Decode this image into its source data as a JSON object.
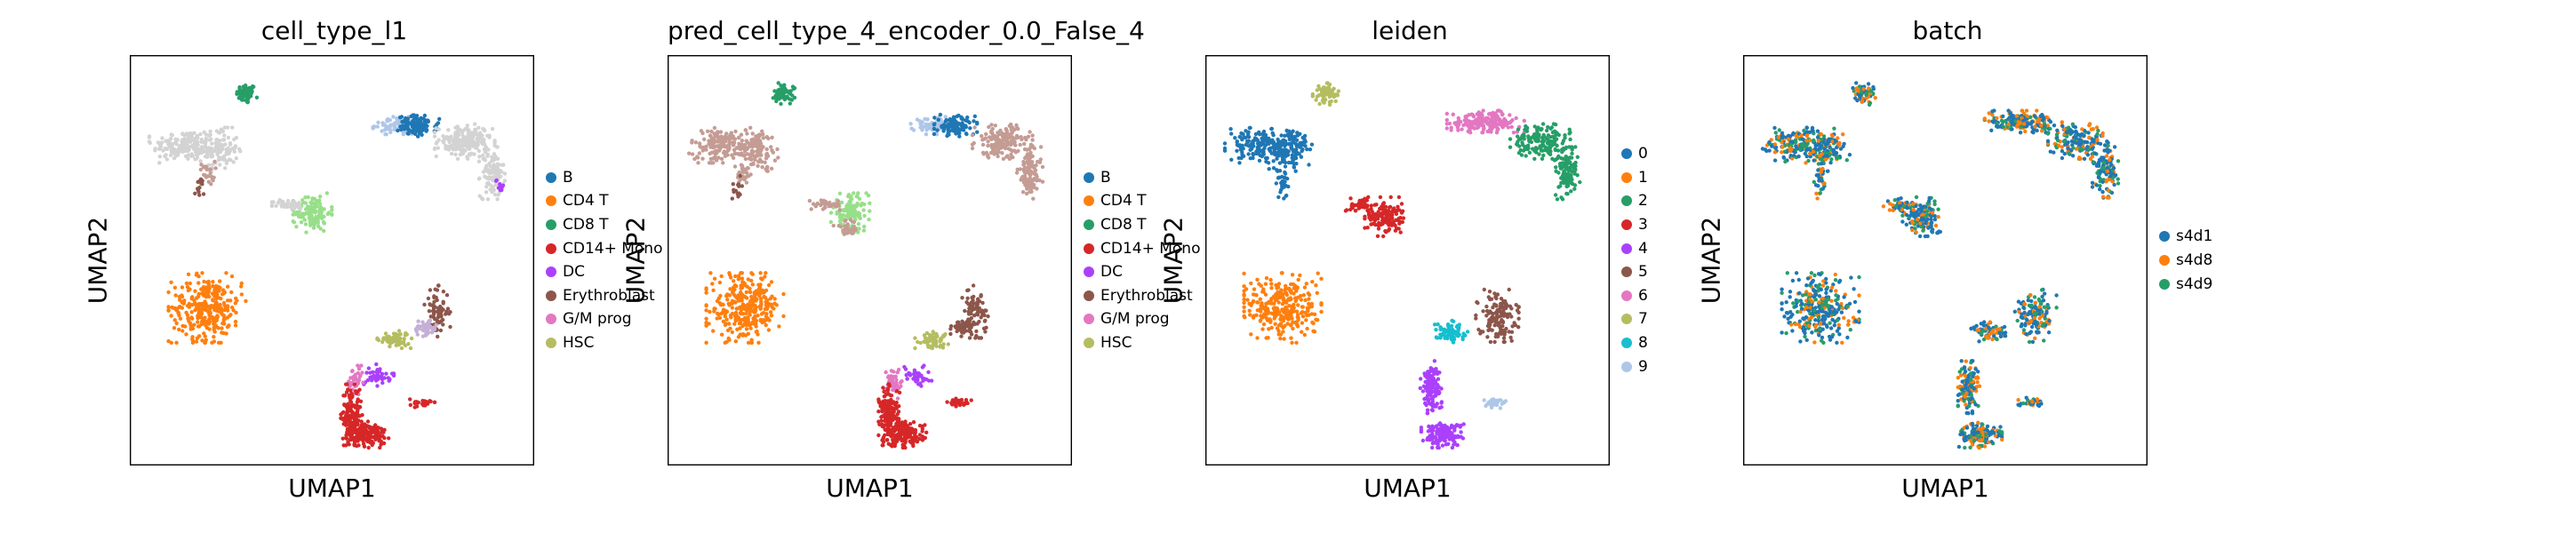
{
  "chart_data": [
    {
      "type": "scatter",
      "title": "cell_type_l1",
      "xlabel": "UMAP1",
      "ylabel": "UMAP2",
      "x_ticks": [],
      "y_ticks": [],
      "legend_position": "right",
      "legend": [
        {
          "label": "B",
          "color": "#1f77b4"
        },
        {
          "label": "CD4 T",
          "color": "#ff7f0e"
        },
        {
          "label": "CD8 T",
          "color": "#279e68"
        },
        {
          "label": "CD14+ Mono",
          "color": "#d62728"
        },
        {
          "label": "DC",
          "color": "#aa40fc"
        },
        {
          "label": "Erythroblast",
          "color": "#8c564b"
        },
        {
          "label": "G/M prog",
          "color": "#e377c2"
        },
        {
          "label": "HSC",
          "color": "#b5bd61"
        }
      ],
      "clusters": [
        {
          "x": 0.28,
          "y": 0.92,
          "rx": 0.025,
          "ry": 0.025,
          "color": "#279e68",
          "n": 60
        },
        {
          "x": 0.12,
          "y": 0.79,
          "rx": 0.08,
          "ry": 0.04,
          "color": "#d3d3d3",
          "n": 160
        },
        {
          "x": 0.21,
          "y": 0.78,
          "rx": 0.05,
          "ry": 0.05,
          "color": "#d3d3d3",
          "n": 120
        },
        {
          "x": 0.18,
          "y": 0.72,
          "rx": 0.02,
          "ry": 0.03,
          "color": "#c49c94",
          "n": 25
        },
        {
          "x": 0.16,
          "y": 0.68,
          "rx": 0.012,
          "ry": 0.03,
          "color": "#8c564b",
          "n": 15
        },
        {
          "x": 0.66,
          "y": 0.84,
          "rx": 0.05,
          "ry": 0.02,
          "color": "#aec7e8",
          "n": 70
        },
        {
          "x": 0.72,
          "y": 0.84,
          "rx": 0.05,
          "ry": 0.025,
          "color": "#1f77b4",
          "n": 110
        },
        {
          "x": 0.84,
          "y": 0.8,
          "rx": 0.07,
          "ry": 0.04,
          "color": "#d3d3d3",
          "n": 180
        },
        {
          "x": 0.91,
          "y": 0.72,
          "rx": 0.03,
          "ry": 0.06,
          "color": "#d3d3d3",
          "n": 110
        },
        {
          "x": 0.93,
          "y": 0.69,
          "rx": 0.01,
          "ry": 0.02,
          "color": "#aa40fc",
          "n": 10
        },
        {
          "x": 0.45,
          "y": 0.62,
          "rx": 0.045,
          "ry": 0.045,
          "color": "#98df8a",
          "n": 120
        },
        {
          "x": 0.39,
          "y": 0.64,
          "rx": 0.04,
          "ry": 0.012,
          "color": "#d3d3d3",
          "n": 40
        },
        {
          "x": 0.18,
          "y": 0.38,
          "rx": 0.09,
          "ry": 0.08,
          "color": "#ff7f0e",
          "n": 300
        },
        {
          "x": 0.77,
          "y": 0.37,
          "rx": 0.03,
          "ry": 0.06,
          "color": "#8c564b",
          "n": 70
        },
        {
          "x": 0.74,
          "y": 0.33,
          "rx": 0.03,
          "ry": 0.02,
          "color": "#c5b0d5",
          "n": 50
        },
        {
          "x": 0.66,
          "y": 0.3,
          "rx": 0.04,
          "ry": 0.02,
          "color": "#b5bd61",
          "n": 60
        },
        {
          "x": 0.62,
          "y": 0.21,
          "rx": 0.035,
          "ry": 0.025,
          "color": "#aa40fc",
          "n": 40
        },
        {
          "x": 0.56,
          "y": 0.19,
          "rx": 0.02,
          "ry": 0.04,
          "color": "#e377c2",
          "n": 40
        },
        {
          "x": 0.55,
          "y": 0.11,
          "rx": 0.025,
          "ry": 0.07,
          "color": "#d62728",
          "n": 160
        },
        {
          "x": 0.59,
          "y": 0.06,
          "rx": 0.05,
          "ry": 0.03,
          "color": "#d62728",
          "n": 150
        },
        {
          "x": 0.73,
          "y": 0.14,
          "rx": 0.03,
          "ry": 0.01,
          "color": "#d62728",
          "n": 30
        }
      ]
    },
    {
      "type": "scatter",
      "title": "pred_cell_type_4_encoder_0.0_False_4",
      "xlabel": "UMAP1",
      "ylabel": "UMAP2",
      "x_ticks": [],
      "y_ticks": [],
      "legend_position": "right",
      "legend": [
        {
          "label": "B",
          "color": "#1f77b4"
        },
        {
          "label": "CD4 T",
          "color": "#ff7f0e"
        },
        {
          "label": "CD8 T",
          "color": "#279e68"
        },
        {
          "label": "CD14+ Mono",
          "color": "#d62728"
        },
        {
          "label": "DC",
          "color": "#aa40fc"
        },
        {
          "label": "Erythroblast",
          "color": "#8c564b"
        },
        {
          "label": "G/M prog",
          "color": "#e377c2"
        },
        {
          "label": "HSC",
          "color": "#b5bd61"
        }
      ],
      "clusters": [
        {
          "x": 0.28,
          "y": 0.92,
          "rx": 0.025,
          "ry": 0.025,
          "color": "#279e68",
          "n": 60
        },
        {
          "x": 0.12,
          "y": 0.79,
          "rx": 0.08,
          "ry": 0.04,
          "color": "#c49c94",
          "n": 160
        },
        {
          "x": 0.21,
          "y": 0.78,
          "rx": 0.05,
          "ry": 0.05,
          "color": "#c49c94",
          "n": 120
        },
        {
          "x": 0.18,
          "y": 0.72,
          "rx": 0.02,
          "ry": 0.03,
          "color": "#c49c94",
          "n": 25
        },
        {
          "x": 0.16,
          "y": 0.68,
          "rx": 0.012,
          "ry": 0.03,
          "color": "#8c564b",
          "n": 15
        },
        {
          "x": 0.66,
          "y": 0.84,
          "rx": 0.05,
          "ry": 0.02,
          "color": "#aec7e8",
          "n": 70
        },
        {
          "x": 0.72,
          "y": 0.84,
          "rx": 0.05,
          "ry": 0.025,
          "color": "#1f77b4",
          "n": 110
        },
        {
          "x": 0.84,
          "y": 0.8,
          "rx": 0.07,
          "ry": 0.04,
          "color": "#c49c94",
          "n": 180
        },
        {
          "x": 0.91,
          "y": 0.72,
          "rx": 0.03,
          "ry": 0.06,
          "color": "#c49c94",
          "n": 110
        },
        {
          "x": 0.45,
          "y": 0.62,
          "rx": 0.045,
          "ry": 0.045,
          "color": "#98df8a",
          "n": 120
        },
        {
          "x": 0.39,
          "y": 0.64,
          "rx": 0.04,
          "ry": 0.012,
          "color": "#c49c94",
          "n": 40
        },
        {
          "x": 0.44,
          "y": 0.58,
          "rx": 0.03,
          "ry": 0.02,
          "color": "#c49c94",
          "n": 30
        },
        {
          "x": 0.18,
          "y": 0.38,
          "rx": 0.09,
          "ry": 0.08,
          "color": "#ff7f0e",
          "n": 300
        },
        {
          "x": 0.77,
          "y": 0.37,
          "rx": 0.03,
          "ry": 0.06,
          "color": "#8c564b",
          "n": 70
        },
        {
          "x": 0.74,
          "y": 0.33,
          "rx": 0.03,
          "ry": 0.02,
          "color": "#8c564b",
          "n": 50
        },
        {
          "x": 0.66,
          "y": 0.3,
          "rx": 0.04,
          "ry": 0.02,
          "color": "#b5bd61",
          "n": 60
        },
        {
          "x": 0.62,
          "y": 0.21,
          "rx": 0.035,
          "ry": 0.025,
          "color": "#aa40fc",
          "n": 40
        },
        {
          "x": 0.56,
          "y": 0.19,
          "rx": 0.02,
          "ry": 0.04,
          "color": "#e377c2",
          "n": 40
        },
        {
          "x": 0.55,
          "y": 0.11,
          "rx": 0.025,
          "ry": 0.07,
          "color": "#d62728",
          "n": 160
        },
        {
          "x": 0.59,
          "y": 0.06,
          "rx": 0.05,
          "ry": 0.03,
          "color": "#d62728",
          "n": 150
        },
        {
          "x": 0.73,
          "y": 0.14,
          "rx": 0.03,
          "ry": 0.01,
          "color": "#d62728",
          "n": 30
        }
      ]
    },
    {
      "type": "scatter",
      "title": "leiden",
      "xlabel": "UMAP1",
      "ylabel": "UMAP2",
      "x_ticks": [],
      "y_ticks": [],
      "legend_position": "right",
      "legend": [
        {
          "label": "0",
          "color": "#1f77b4"
        },
        {
          "label": "1",
          "color": "#ff7f0e"
        },
        {
          "label": "2",
          "color": "#279e68"
        },
        {
          "label": "3",
          "color": "#d62728"
        },
        {
          "label": "4",
          "color": "#aa40fc"
        },
        {
          "label": "5",
          "color": "#8c564b"
        },
        {
          "label": "6",
          "color": "#e377c2"
        },
        {
          "label": "7",
          "color": "#b5bd61"
        },
        {
          "label": "8",
          "color": "#17becf"
        },
        {
          "label": "9",
          "color": "#aec7e8"
        }
      ],
      "clusters": [
        {
          "x": 0.29,
          "y": 0.92,
          "rx": 0.03,
          "ry": 0.025,
          "color": "#b5bd61",
          "n": 60
        },
        {
          "x": 0.12,
          "y": 0.79,
          "rx": 0.08,
          "ry": 0.04,
          "color": "#1f77b4",
          "n": 160
        },
        {
          "x": 0.2,
          "y": 0.78,
          "rx": 0.05,
          "ry": 0.05,
          "color": "#1f77b4",
          "n": 120
        },
        {
          "x": 0.18,
          "y": 0.7,
          "rx": 0.015,
          "ry": 0.04,
          "color": "#1f77b4",
          "n": 30
        },
        {
          "x": 0.7,
          "y": 0.85,
          "rx": 0.09,
          "ry": 0.025,
          "color": "#e377c2",
          "n": 180
        },
        {
          "x": 0.84,
          "y": 0.8,
          "rx": 0.07,
          "ry": 0.04,
          "color": "#279e68",
          "n": 170
        },
        {
          "x": 0.91,
          "y": 0.72,
          "rx": 0.03,
          "ry": 0.06,
          "color": "#279e68",
          "n": 110
        },
        {
          "x": 0.44,
          "y": 0.61,
          "rx": 0.045,
          "ry": 0.045,
          "color": "#d62728",
          "n": 130
        },
        {
          "x": 0.38,
          "y": 0.64,
          "rx": 0.035,
          "ry": 0.015,
          "color": "#d62728",
          "n": 40
        },
        {
          "x": 0.18,
          "y": 0.38,
          "rx": 0.09,
          "ry": 0.08,
          "color": "#ff7f0e",
          "n": 300
        },
        {
          "x": 0.73,
          "y": 0.36,
          "rx": 0.05,
          "ry": 0.06,
          "color": "#8c564b",
          "n": 130
        },
        {
          "x": 0.61,
          "y": 0.32,
          "rx": 0.04,
          "ry": 0.025,
          "color": "#17becf",
          "n": 70
        },
        {
          "x": 0.56,
          "y": 0.18,
          "rx": 0.025,
          "ry": 0.06,
          "color": "#aa40fc",
          "n": 120
        },
        {
          "x": 0.59,
          "y": 0.06,
          "rx": 0.05,
          "ry": 0.03,
          "color": "#aa40fc",
          "n": 150
        },
        {
          "x": 0.72,
          "y": 0.14,
          "rx": 0.03,
          "ry": 0.012,
          "color": "#aec7e8",
          "n": 30
        }
      ]
    },
    {
      "type": "scatter",
      "title": "batch",
      "xlabel": "UMAP1",
      "ylabel": "UMAP2",
      "x_ticks": [],
      "y_ticks": [],
      "legend_position": "right",
      "legend": [
        {
          "label": "s4d1",
          "color": "#1f77b4"
        },
        {
          "label": "s4d8",
          "color": "#ff7f0e"
        },
        {
          "label": "s4d9",
          "color": "#279e68"
        }
      ],
      "mixed_colors": [
        "#1f77b4",
        "#1f77b4",
        "#ff7f0e",
        "#279e68"
      ],
      "clusters": [
        {
          "x": 0.29,
          "y": 0.92,
          "rx": 0.03,
          "ry": 0.025,
          "color": "mixed",
          "n": 60
        },
        {
          "x": 0.12,
          "y": 0.79,
          "rx": 0.08,
          "ry": 0.04,
          "color": "mixed",
          "n": 160
        },
        {
          "x": 0.2,
          "y": 0.78,
          "rx": 0.05,
          "ry": 0.05,
          "color": "mixed",
          "n": 120
        },
        {
          "x": 0.18,
          "y": 0.7,
          "rx": 0.015,
          "ry": 0.04,
          "color": "mixed",
          "n": 30
        },
        {
          "x": 0.7,
          "y": 0.85,
          "rx": 0.09,
          "ry": 0.025,
          "color": "mixed",
          "n": 180
        },
        {
          "x": 0.84,
          "y": 0.8,
          "rx": 0.07,
          "ry": 0.04,
          "color": "mixed",
          "n": 170
        },
        {
          "x": 0.91,
          "y": 0.72,
          "rx": 0.03,
          "ry": 0.06,
          "color": "mixed",
          "n": 110
        },
        {
          "x": 0.44,
          "y": 0.61,
          "rx": 0.045,
          "ry": 0.045,
          "color": "mixed",
          "n": 130
        },
        {
          "x": 0.38,
          "y": 0.64,
          "rx": 0.035,
          "ry": 0.015,
          "color": "mixed",
          "n": 40
        },
        {
          "x": 0.18,
          "y": 0.38,
          "rx": 0.09,
          "ry": 0.08,
          "color": "mixed",
          "n": 300
        },
        {
          "x": 0.73,
          "y": 0.36,
          "rx": 0.05,
          "ry": 0.06,
          "color": "mixed",
          "n": 130
        },
        {
          "x": 0.61,
          "y": 0.32,
          "rx": 0.04,
          "ry": 0.025,
          "color": "mixed",
          "n": 70
        },
        {
          "x": 0.56,
          "y": 0.18,
          "rx": 0.025,
          "ry": 0.06,
          "color": "mixed",
          "n": 120
        },
        {
          "x": 0.59,
          "y": 0.06,
          "rx": 0.05,
          "ry": 0.03,
          "color": "mixed",
          "n": 150
        },
        {
          "x": 0.72,
          "y": 0.14,
          "rx": 0.03,
          "ry": 0.012,
          "color": "mixed",
          "n": 30
        }
      ]
    }
  ]
}
